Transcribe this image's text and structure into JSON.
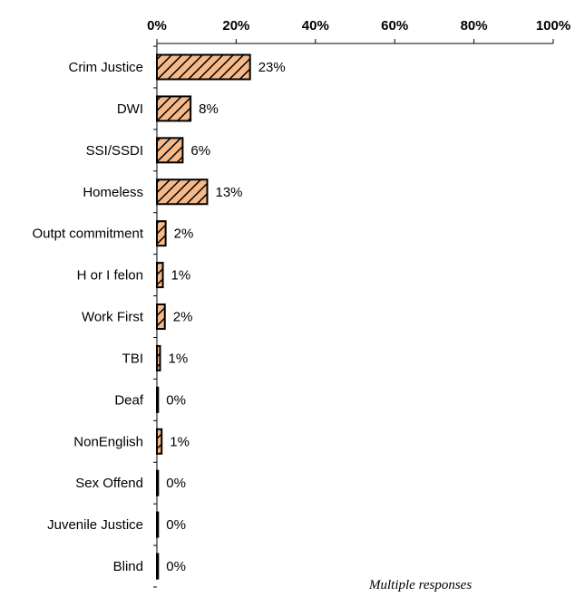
{
  "chart_data": {
    "type": "bar",
    "orientation": "horizontal",
    "categories": [
      "Crim Justice",
      "DWI",
      "SSI/SSDI",
      "Homeless",
      "Outpt commitment",
      "H or I felon",
      "Work First",
      "TBI",
      "Deaf",
      "NonEnglish",
      "Sex Offend",
      "Juvenile Justice",
      "Blind"
    ],
    "values": [
      23.5,
      8.5,
      6.5,
      12.7,
      2.2,
      1.5,
      2.0,
      0.8,
      0.3,
      1.2,
      0.3,
      0.3,
      0.3
    ],
    "value_labels": [
      "23%",
      "8%",
      "6%",
      "13%",
      "2%",
      "1%",
      "2%",
      "1%",
      "0%",
      "1%",
      "0%",
      "0%",
      "0%"
    ],
    "xlim": [
      0,
      100
    ],
    "x_ticks": [
      0,
      20,
      40,
      60,
      80,
      100
    ],
    "x_tick_labels": [
      "0%",
      "20%",
      "40%",
      "60%",
      "80%",
      "100%"
    ],
    "x_axis_position": "top",
    "grid": false,
    "bar_fill": "#f5b98a",
    "bar_hatch": "#000000",
    "bar_pattern": "diagonal-hatch",
    "title": "",
    "xlabel": "",
    "ylabel": "",
    "annotation": "Multiple responses"
  }
}
